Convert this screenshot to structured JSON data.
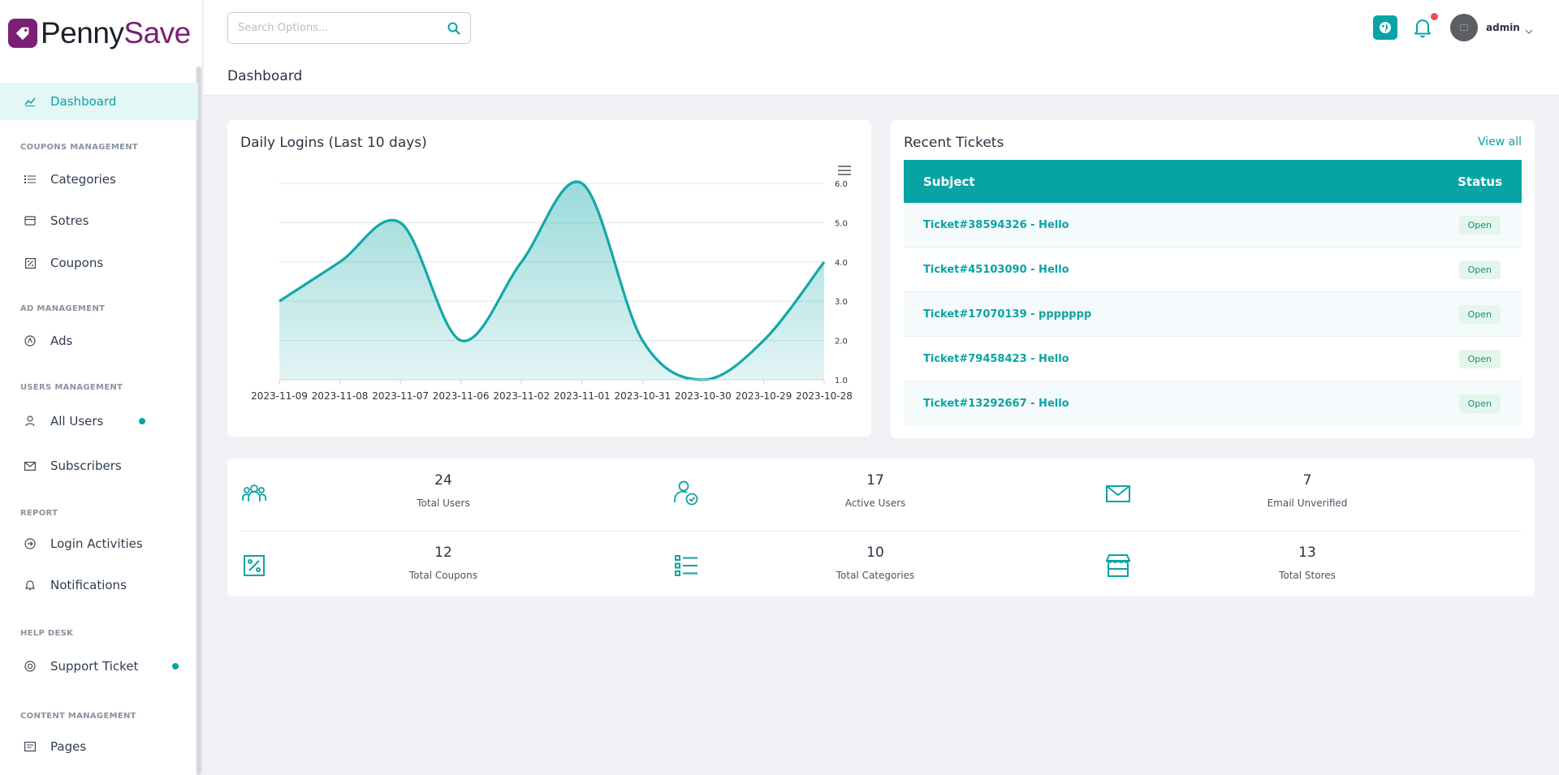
{
  "app": {
    "name_part1": "Penny",
    "name_part2": "Save"
  },
  "search": {
    "placeholder": "Search Options..."
  },
  "header": {
    "page_title": "Dashboard",
    "user_name": "admin"
  },
  "sidebar": {
    "dashboard": "Dashboard",
    "sections": {
      "coupons": "COUPONS MANAGEMENT",
      "ads": "AD MANAGEMENT",
      "users": "USERS MANAGEMENT",
      "report": "REPORT",
      "helpdesk": "HELP DESK",
      "content": "CONTENT MANAGEMENT"
    },
    "items": {
      "categories": "Categories",
      "stores": "Sotres",
      "coupons": "Coupons",
      "ads": "Ads",
      "all_users": "All Users",
      "subscribers": "Subscribers",
      "login_activities": "Login Activities",
      "notifications": "Notifications",
      "support_ticket": "Support Ticket",
      "pages": "Pages"
    }
  },
  "chart_data": {
    "type": "area",
    "title": "Daily Logins (Last 10 days)",
    "categories": [
      "2023-11-09",
      "2023-11-08",
      "2023-11-07",
      "2023-11-06",
      "2023-11-02",
      "2023-11-01",
      "2023-10-31",
      "2023-10-30",
      "2023-10-29",
      "2023-10-28"
    ],
    "values": [
      3,
      4,
      5,
      2,
      4,
      6,
      2,
      1,
      2,
      4
    ],
    "ylim": [
      1,
      6
    ],
    "yticks": [
      "1.0",
      "2.0",
      "3.0",
      "4.0",
      "5.0",
      "6.0"
    ],
    "yaxis_position": "right",
    "grid": true,
    "color": "#12a8a8"
  },
  "tickets": {
    "title": "Recent Tickets",
    "view_all": "View all",
    "col_subject": "Subject",
    "col_status": "Status",
    "rows": [
      {
        "subject": "Ticket#38594326 - Hello",
        "status": "Open"
      },
      {
        "subject": "Ticket#45103090 - Hello",
        "status": "Open"
      },
      {
        "subject": "Ticket#17070139 - ppppppp",
        "status": "Open"
      },
      {
        "subject": "Ticket#79458423 - Hello",
        "status": "Open"
      },
      {
        "subject": "Ticket#13292667 - Hello",
        "status": "Open"
      }
    ]
  },
  "stats": [
    {
      "value": "24",
      "label": "Total Users",
      "icon": "users-group-icon"
    },
    {
      "value": "17",
      "label": "Active Users",
      "icon": "user-check-icon"
    },
    {
      "value": "7",
      "label": "Email Unverified",
      "icon": "envelope-icon"
    },
    {
      "value": "12",
      "label": "Total Coupons",
      "icon": "percent-icon"
    },
    {
      "value": "10",
      "label": "Total Categories",
      "icon": "list-icon"
    },
    {
      "value": "13",
      "label": "Total Stores",
      "icon": "store-icon"
    }
  ],
  "colors": {
    "accent": "#0aa3a3",
    "brand": "#7b1f76",
    "notification_dot": "#ef4a55"
  }
}
